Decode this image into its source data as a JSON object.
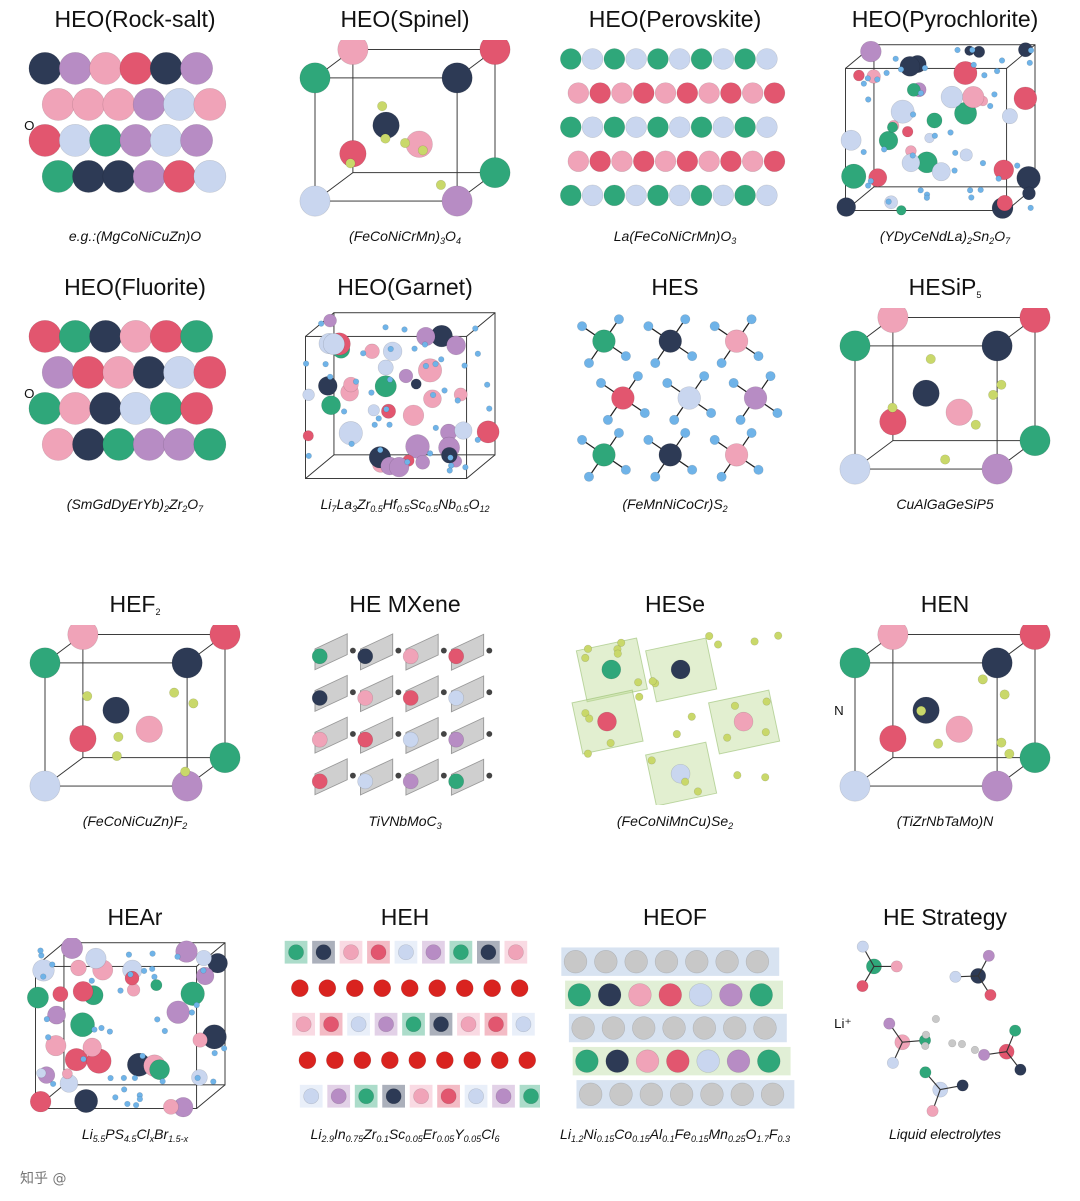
{
  "colors": {
    "teal": "#2fa77a",
    "navy": "#2d3a55",
    "pink": "#f0a3b8",
    "red": "#e2566f",
    "lavender": "#c9d6ef",
    "purple": "#b78cc4",
    "blue": "#6fb3e8",
    "yellow": "#c9d86a",
    "gray": "#c8c8c8",
    "oxy_red": "#d9231f"
  },
  "panels": [
    {
      "title": "HEO(Rock-salt)",
      "formula": [
        [
          "e.g.:(MgCoNiCuZn)O",
          ""
        ]
      ],
      "label": "O",
      "style": "layers"
    },
    {
      "title": "HEO(Spinel)",
      "formula": [
        [
          "(FeCoNiCrMn)",
          ""
        ],
        [
          "3",
          "sub"
        ],
        [
          "O",
          ""
        ],
        [
          "4",
          "sub"
        ]
      ],
      "style": "cube-sparse"
    },
    {
      "title": "HEO(Perovskite)",
      "formula": [
        [
          "La(FeCoNiCrMn)O",
          ""
        ],
        [
          "3",
          "sub"
        ]
      ],
      "style": "rows"
    },
    {
      "title": "HEO(Pyrochlorite)",
      "formula": [
        [
          "(YDyCeNdLa)",
          ""
        ],
        [
          "2",
          "sub"
        ],
        [
          "Sn",
          ""
        ],
        [
          "2",
          "sub"
        ],
        [
          "O",
          ""
        ],
        [
          "7",
          "sub"
        ]
      ],
      "style": "cube-dense"
    },
    {
      "title": "HEO(Fluorite)",
      "formula": [
        [
          "(SmGdDyErYb)",
          ""
        ],
        [
          "2",
          "sub"
        ],
        [
          "Zr",
          ""
        ],
        [
          "2",
          "sub"
        ],
        [
          "O",
          ""
        ],
        [
          "7",
          "sub"
        ]
      ],
      "label": "O",
      "style": "layers"
    },
    {
      "title": "HEO(Garnet)",
      "formula": [
        [
          "Li",
          ""
        ],
        [
          "7",
          "sub"
        ],
        [
          "La",
          ""
        ],
        [
          "3",
          "sub"
        ],
        [
          "Zr",
          ""
        ],
        [
          "0.5",
          "sub"
        ],
        [
          "Hf",
          ""
        ],
        [
          "0.5",
          "sub"
        ],
        [
          "Sc",
          ""
        ],
        [
          "0.5",
          "sub"
        ],
        [
          "Nb",
          ""
        ],
        [
          "0.5",
          "sub"
        ],
        [
          "O",
          ""
        ],
        [
          "12",
          "sub"
        ]
      ],
      "style": "cube-dense"
    },
    {
      "title": "HES",
      "formula": [
        [
          "(FeMnNiCoCr)S",
          ""
        ],
        [
          "2",
          "sub"
        ]
      ],
      "style": "network"
    },
    {
      "title": "HESiP",
      "title_sub": "5",
      "formula": [
        [
          "CuAlGaGeSiP5",
          ""
        ]
      ],
      "style": "cube-sparse"
    },
    {
      "title": "HEF",
      "title_sub": "2",
      "formula": [
        [
          "(FeCoNiCuZn)F",
          ""
        ],
        [
          "2",
          "sub"
        ]
      ],
      "style": "cube-sparse"
    },
    {
      "title": "HE MXene",
      "formula": [
        [
          "TiVNbMoC",
          ""
        ],
        [
          "3",
          "sub"
        ]
      ],
      "style": "mxene"
    },
    {
      "title": "HESe",
      "formula": [
        [
          "(FeCoNiMnCu)Se",
          ""
        ],
        [
          "2",
          "sub"
        ]
      ],
      "style": "octa"
    },
    {
      "title": "HEN",
      "formula": [
        [
          "(TiZrNbTaMo)N",
          ""
        ]
      ],
      "label": "N",
      "style": "cube-sparse"
    },
    {
      "title": "HEAr",
      "formula": [
        [
          "Li",
          ""
        ],
        [
          "5.5",
          "sub"
        ],
        [
          "PS",
          ""
        ],
        [
          "4.5",
          "sub"
        ],
        [
          "Cl",
          ""
        ],
        [
          "x",
          "sub"
        ],
        [
          "Br",
          ""
        ],
        [
          "1.5-x",
          "sub"
        ]
      ],
      "style": "cube-dense"
    },
    {
      "title": "HEH",
      "formula": [
        [
          "Li",
          ""
        ],
        [
          "2.9",
          "sub"
        ],
        [
          "In",
          ""
        ],
        [
          "0.75",
          "sub"
        ],
        [
          "Zr",
          ""
        ],
        [
          "0.1",
          "sub"
        ],
        [
          "Sc",
          ""
        ],
        [
          "0.05",
          "sub"
        ],
        [
          "Er",
          ""
        ],
        [
          "0.05",
          "sub"
        ],
        [
          "Y",
          ""
        ],
        [
          "0.05",
          "sub"
        ],
        [
          "Cl",
          ""
        ],
        [
          "6",
          "sub"
        ]
      ],
      "style": "hydride"
    },
    {
      "title": "HEOF",
      "formula": [
        [
          "Li",
          ""
        ],
        [
          "1.2",
          "sub"
        ],
        [
          "Ni",
          ""
        ],
        [
          "0.15",
          "sub"
        ],
        [
          "Co",
          ""
        ],
        [
          "0.15",
          "sub"
        ],
        [
          "Al",
          ""
        ],
        [
          "0.1",
          "sub"
        ],
        [
          "Fe",
          ""
        ],
        [
          "0.15",
          "sub"
        ],
        [
          "Mn",
          ""
        ],
        [
          "0.25",
          "sub"
        ],
        [
          "O",
          ""
        ],
        [
          "1.7",
          "sub"
        ],
        [
          "F",
          ""
        ],
        [
          "0.3",
          "sub"
        ]
      ],
      "style": "oxyfluoride"
    },
    {
      "title": "HE Strategy",
      "formula": [
        [
          "Liquid electrolytes",
          ""
        ]
      ],
      "label": "Li⁺",
      "style": "molecules"
    }
  ],
  "watermark": "知乎 @"
}
